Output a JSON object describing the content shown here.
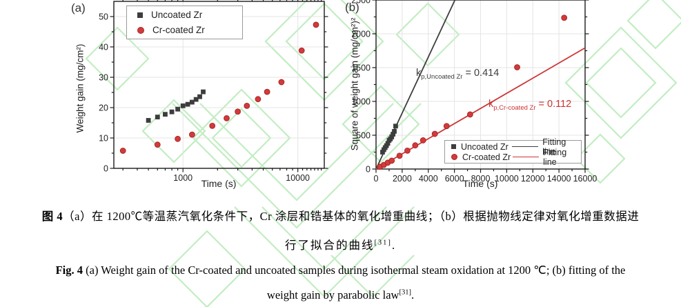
{
  "chart_data": [
    {
      "id": "a",
      "type": "scatter",
      "panel_label": "(a)",
      "xlabel": "Time (s)",
      "ylabel": "Weight gain (mg/cm²)",
      "xscale": "log",
      "xlim": [
        250,
        17000
      ],
      "ylim": [
        0,
        55
      ],
      "xticks": [
        1000,
        10000
      ],
      "xticklabels": [
        "1000",
        "10000"
      ],
      "xminor": [
        300,
        400,
        500,
        600,
        700,
        800,
        900,
        2000,
        3000,
        4000,
        5000,
        6000,
        7000,
        8000,
        9000,
        11000,
        12000,
        13000,
        14000,
        15000,
        16000
      ],
      "yticks": [
        0,
        10,
        20,
        30,
        40,
        50
      ],
      "yminor": [
        5,
        15,
        25,
        35,
        45
      ],
      "grid": true,
      "legend_position": "top-left",
      "series": [
        {
          "name": "Uncoated Zr",
          "marker": "square",
          "color": "#3d3d3d",
          "x": [
            500,
            600,
            700,
            800,
            900,
            1000,
            1100,
            1200,
            1300,
            1400,
            1500
          ],
          "y": [
            15.8,
            16.9,
            17.8,
            18.6,
            19.5,
            20.6,
            21.1,
            21.8,
            22.7,
            23.6,
            25.2
          ]
        },
        {
          "name": "Cr-coated Zr",
          "marker": "circle",
          "color": "#d23b3b",
          "edge": "#a82525",
          "x": [
            300,
            600,
            900,
            1200,
            1800,
            2400,
            3000,
            3600,
            4500,
            5400,
            7200,
            10800,
            14400
          ],
          "y": [
            5.8,
            7.8,
            9.7,
            11.1,
            14.0,
            16.5,
            18.7,
            20.6,
            22.8,
            25.2,
            28.4,
            38.8,
            47.3
          ]
        }
      ]
    },
    {
      "id": "b",
      "type": "scatter",
      "panel_label": "(b)",
      "xlabel": "Time (s)",
      "ylabel": "Square of weight gain (mg/cm²)²",
      "xscale": "linear",
      "xlim": [
        0,
        16000
      ],
      "ylim": [
        0,
        2500
      ],
      "xticks": [
        0,
        2000,
        4000,
        6000,
        8000,
        10000,
        12000,
        14000,
        16000
      ],
      "xticklabels": [
        "0",
        "2000",
        "4000",
        "6000",
        "8000",
        "10000",
        "12000",
        "14000",
        "16000"
      ],
      "xminor": [
        1000,
        3000,
        5000,
        7000,
        9000,
        11000,
        13000,
        15000
      ],
      "yticks": [
        0,
        500,
        1000,
        1500,
        2000,
        2500
      ],
      "yminor": [
        250,
        750,
        1250,
        1750,
        2250
      ],
      "grid": true,
      "legend_position": "bottom-right",
      "series": [
        {
          "name": "Uncoated Zr",
          "marker": "square",
          "color": "#3d3d3d",
          "x": [
            500,
            600,
            700,
            800,
            900,
            1000,
            1100,
            1200,
            1300,
            1400,
            1500
          ],
          "y": [
            250,
            286,
            317,
            346,
            380,
            424,
            445,
            475,
            515,
            557,
            635
          ]
        },
        {
          "name": "Cr-coated Zr",
          "marker": "circle",
          "color": "#d23b3b",
          "edge": "#a82525",
          "x": [
            300,
            600,
            900,
            1200,
            1800,
            2400,
            3000,
            3600,
            4500,
            5400,
            7200,
            10800,
            14400
          ],
          "y": [
            34,
            61,
            94,
            123,
            196,
            272,
            350,
            424,
            520,
            635,
            807,
            1505,
            2237
          ]
        }
      ],
      "fits": [
        {
          "name": "Fitting line",
          "color": "#3d3d3d",
          "slope": 0.414
        },
        {
          "name": "Fitting line",
          "color": "#cc3434",
          "slope": 0.112
        }
      ],
      "annotations": [
        {
          "k": "k",
          "sub": "p,Uncoated Zr",
          "eq": " = 0.414",
          "color": "#3d3d3d"
        },
        {
          "k": "k",
          "sub": "p,Cr-coated Zr",
          "eq": " = 0.112",
          "color": "#cc3434"
        }
      ],
      "legend": [
        {
          "label": "Uncoated Zr",
          "fit_label": "Fitting line"
        },
        {
          "label": "Cr-coated Zr",
          "fit_label": "Fitting line"
        }
      ]
    }
  ],
  "captions": {
    "zh_bold": "图 4",
    "zh_line1": "（a）在 1200℃等温蒸汽氧化条件下，Cr 涂层和锆基体的氧化增重曲线；（b）根据抛物线定律对氧化增重数据进",
    "zh_line2": "行了拟合的曲线",
    "zh_ref": "[31]",
    "zh_end": ".",
    "en_bold": "Fig. 4",
    "en_line1": " (a) Weight gain of the Cr-coated and uncoated samples during isothermal steam oxidation at 1200 ℃; (b) fitting of the",
    "en_line2": "weight gain by parabolic law",
    "en_ref": "[31]",
    "en_end": "."
  },
  "colors": {
    "uncoated": "#3d3d3d",
    "cr_coated": "#d23b3b",
    "fit_black": "#3d3d3d",
    "fit_red": "#cc3434",
    "grid": "#e4e4e4",
    "watermark": "#8fe08f"
  }
}
